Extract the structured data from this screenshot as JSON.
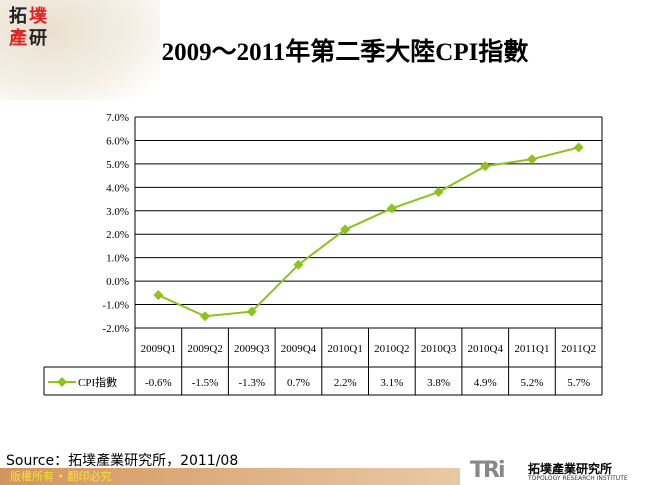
{
  "logo": {
    "chars": [
      "拓",
      "墣",
      "產",
      "研"
    ]
  },
  "title": "2009～2011年第二季大陸CPI指數",
  "chart_data": {
    "type": "line",
    "title": "2009～2011年第二季大陸CPI指數",
    "categories": [
      "2009Q1",
      "2009Q2",
      "2009Q3",
      "2009Q4",
      "2010Q1",
      "2010Q2",
      "2010Q3",
      "2010Q4",
      "2011Q1",
      "2011Q2"
    ],
    "series": [
      {
        "name": "CPI指數",
        "values": [
          -0.6,
          -1.5,
          -1.3,
          0.7,
          2.2,
          3.1,
          3.8,
          4.9,
          5.2,
          5.7
        ],
        "labels": [
          "-0.6%",
          "-1.5%",
          "-1.3%",
          "0.7%",
          "2.2%",
          "3.1%",
          "3.8%",
          "4.9%",
          "5.2%",
          "5.7%"
        ],
        "color": "#8dc21f"
      }
    ],
    "ylim": [
      -2,
      7
    ],
    "yticks": [
      "7.0%",
      "6.0%",
      "5.0%",
      "4.0%",
      "3.0%",
      "2.0%",
      "1.0%",
      "0.0%",
      "-1.0%",
      "-2.0%"
    ],
    "grid": true,
    "legend": "data-table"
  },
  "source": "Source：拓墣產業研究所，2011/08",
  "footer": "版權所有 • 翻印必究",
  "brand": {
    "mark": "TRi",
    "name_cn": "拓墣產業研究所",
    "name_en": "TOPOLOGY RESEARCH INSTITUTE"
  }
}
